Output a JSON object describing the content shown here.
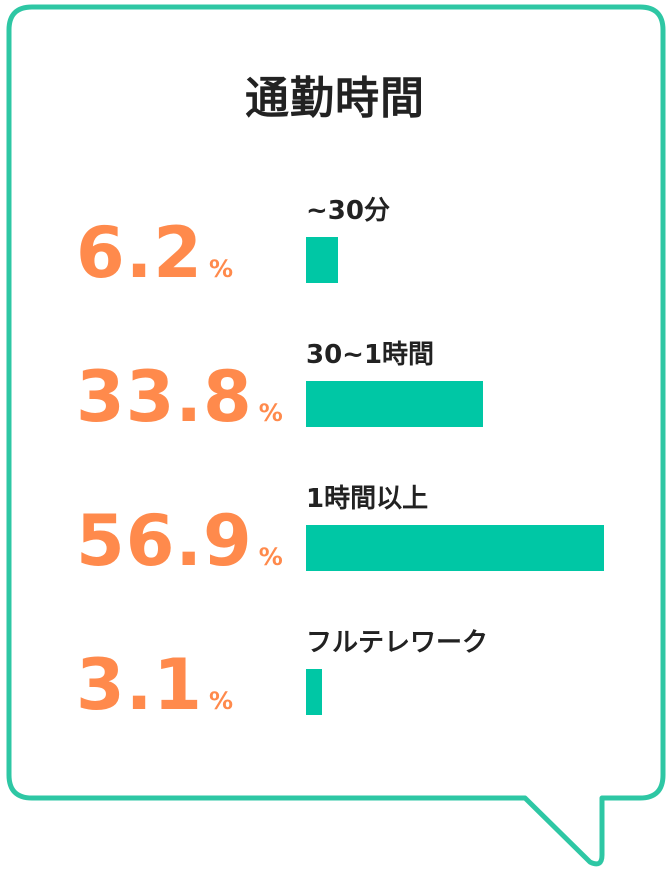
{
  "title": "通勤時間",
  "colors": {
    "accent": "#00c7a5",
    "percent": "#ff8a4c",
    "border": "#2ec7a4",
    "text": "#222222"
  },
  "percent_sign": "%",
  "chart_data": {
    "type": "bar",
    "orientation": "horizontal",
    "title": "通勤時間",
    "unit": "%",
    "categories": [
      "~30分",
      "30~1時間",
      "1時間以上",
      "フルテレワーク"
    ],
    "values": [
      6.2,
      33.8,
      56.9,
      3.1
    ],
    "value_labels": [
      "6.2",
      "33.8",
      "56.9",
      "3.1"
    ],
    "xlim": [
      0,
      56.9
    ],
    "grid": false,
    "legend": "none"
  }
}
